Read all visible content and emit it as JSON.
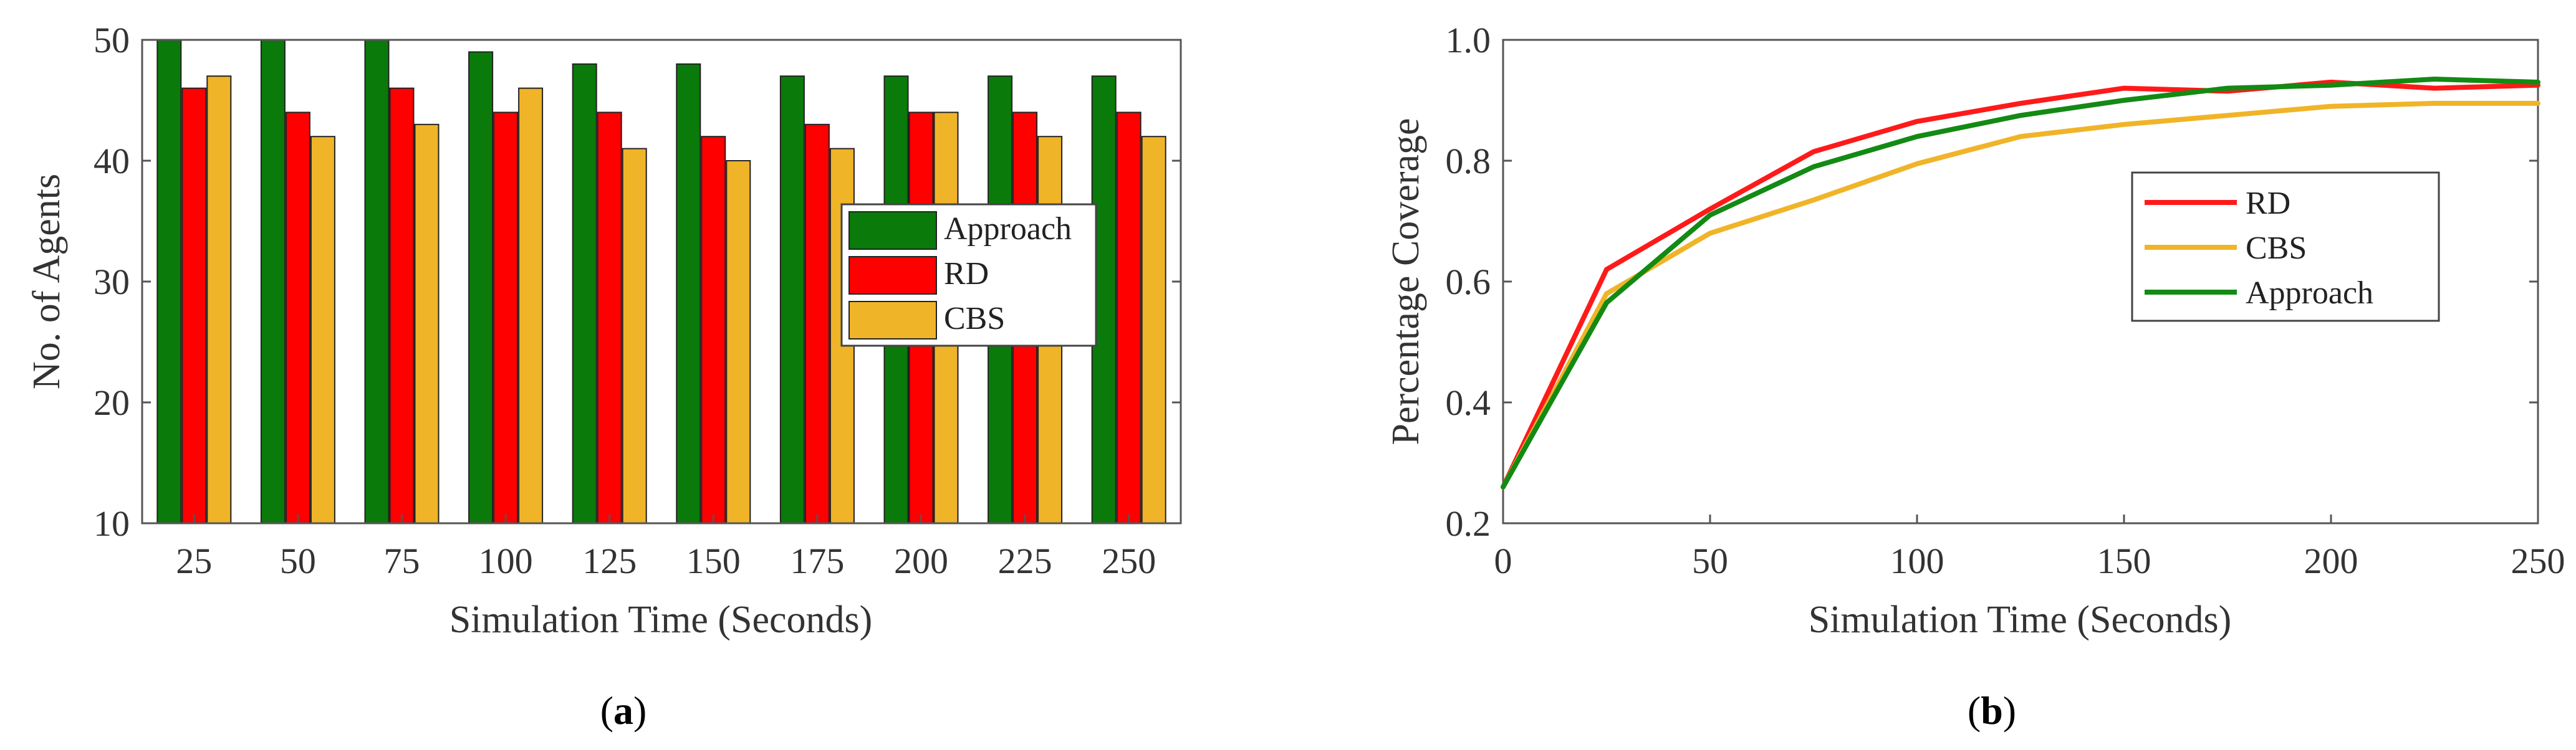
{
  "chart_data": [
    {
      "panel": "a",
      "type": "bar",
      "caption_open": "(",
      "caption_letter": "a",
      "caption_close": ")",
      "xlabel": "Simulation Time (Seconds)",
      "ylabel": "No. of Agents",
      "ylim": [
        10,
        50
      ],
      "yticks": [
        10,
        20,
        30,
        40,
        50
      ],
      "categories": [
        "25",
        "50",
        "75",
        "100",
        "125",
        "150",
        "175",
        "200",
        "225",
        "250"
      ],
      "series": [
        {
          "name": "Approach",
          "color": "#0a7a0a",
          "values": [
            50,
            50,
            50,
            49,
            48,
            48,
            47,
            47,
            47,
            47
          ]
        },
        {
          "name": "RD",
          "color": "#ff0000",
          "values": [
            46,
            44,
            46,
            44,
            44,
            42,
            43,
            44,
            44,
            44
          ]
        },
        {
          "name": "CBS",
          "color": "#f0b428",
          "values": [
            47,
            42,
            43,
            46,
            41,
            40,
            41,
            44,
            42,
            42
          ]
        }
      ],
      "legend": {
        "position": "center-right",
        "entries": [
          "Approach",
          "RD",
          "CBS"
        ]
      }
    },
    {
      "panel": "b",
      "type": "line",
      "caption_open": "(",
      "caption_letter": "b",
      "caption_close": ")",
      "xlabel": "Simulation Time (Seconds)",
      "ylabel": "Percentage Coverage",
      "xlim": [
        0,
        250
      ],
      "ylim": [
        0.2,
        1.0
      ],
      "xticks": [
        0,
        50,
        100,
        150,
        200,
        250
      ],
      "yticks": [
        0.2,
        0.4,
        0.6,
        0.8,
        1.0
      ],
      "ytick_labels": [
        "0.2",
        "0.4",
        "0.6",
        "0.8",
        "1.0"
      ],
      "x": [
        0,
        25,
        50,
        75,
        100,
        125,
        150,
        175,
        200,
        225,
        250
      ],
      "series": [
        {
          "name": "RD",
          "color": "#ff1a1a",
          "values": [
            0.26,
            0.62,
            0.72,
            0.815,
            0.865,
            0.895,
            0.92,
            0.915,
            0.93,
            0.92,
            0.925
          ]
        },
        {
          "name": "CBS",
          "color": "#f0b428",
          "values": [
            0.26,
            0.58,
            0.68,
            0.735,
            0.795,
            0.84,
            0.86,
            0.875,
            0.89,
            0.895,
            0.895
          ]
        },
        {
          "name": "Approach",
          "color": "#138a13",
          "values": [
            0.26,
            0.565,
            0.71,
            0.79,
            0.84,
            0.875,
            0.9,
            0.92,
            0.925,
            0.935,
            0.93
          ]
        }
      ],
      "legend": {
        "position": "center-right",
        "entries": [
          "RD",
          "CBS",
          "Approach"
        ]
      }
    }
  ]
}
